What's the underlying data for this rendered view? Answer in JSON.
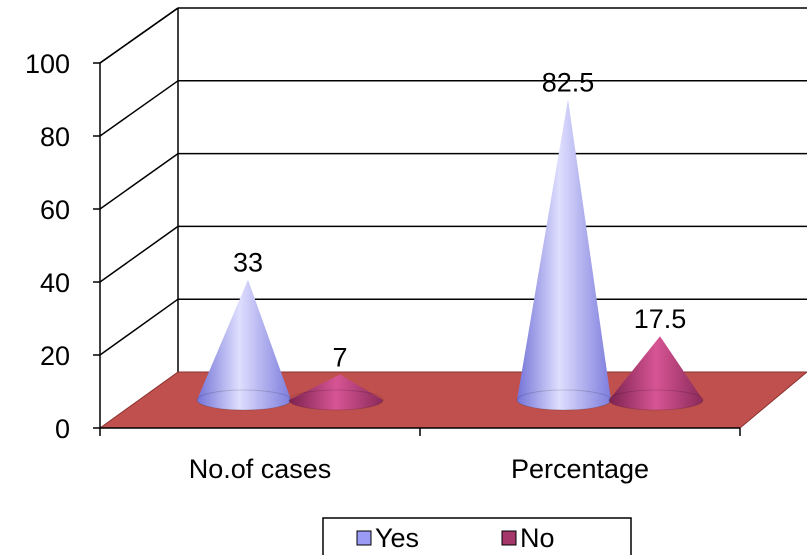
{
  "chart_data": {
    "type": "bar",
    "style": "3d-cone",
    "title": "",
    "xlabel": "",
    "ylabel": "",
    "categories": [
      "No.of cases",
      "Percentage"
    ],
    "series": [
      {
        "name": "Yes",
        "values": [
          33,
          82.5
        ],
        "color": "#9b9bf5"
      },
      {
        "name": "No",
        "values": [
          7,
          17.5
        ],
        "color": "#a5366a"
      }
    ],
    "data_labels": [
      [
        "33",
        "82.5"
      ],
      [
        "7",
        "17.5"
      ]
    ],
    "ylim": [
      0,
      100
    ],
    "yticks": [
      0,
      20,
      40,
      60,
      80,
      100
    ],
    "ytick_labels": [
      "0",
      "20",
      "40",
      "60",
      "80",
      "100"
    ],
    "grid": true,
    "legend": "bottom",
    "floor_color": "#c0504d"
  }
}
